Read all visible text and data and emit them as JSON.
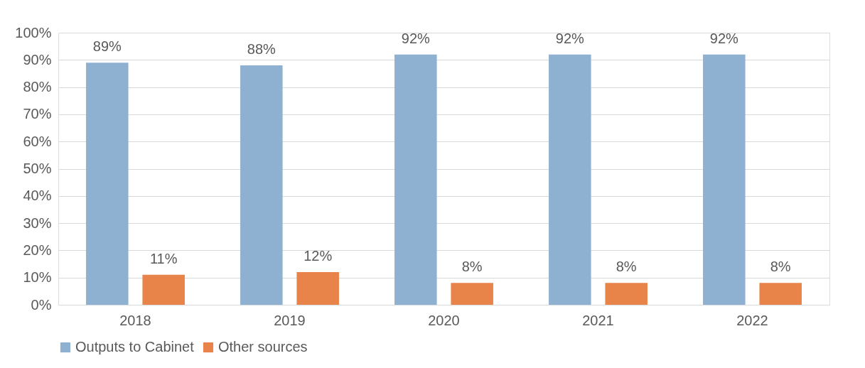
{
  "chart_data": {
    "type": "bar",
    "categories": [
      "2018",
      "2019",
      "2020",
      "2021",
      "2022"
    ],
    "series": [
      {
        "name": "Outputs to Cabinet",
        "color": "#8eb0d1",
        "values": [
          89,
          88,
          92,
          92,
          92
        ],
        "value_labels": [
          "89%",
          "88%",
          "92%",
          "92%",
          "92%"
        ]
      },
      {
        "name": "Other sources",
        "color": "#e8834a",
        "values": [
          11,
          12,
          8,
          8,
          8
        ],
        "value_labels": [
          "11%",
          "12%",
          "8%",
          "8%",
          "8%"
        ]
      }
    ],
    "ylim": [
      0,
      100
    ],
    "yticks": [
      {
        "value": 0,
        "label": "0%"
      },
      {
        "value": 10,
        "label": "10%"
      },
      {
        "value": 20,
        "label": "20%"
      },
      {
        "value": 30,
        "label": "30%"
      },
      {
        "value": 40,
        "label": "40%"
      },
      {
        "value": 50,
        "label": "50%"
      },
      {
        "value": 60,
        "label": "60%"
      },
      {
        "value": 70,
        "label": "70%"
      },
      {
        "value": 80,
        "label": "80%"
      },
      {
        "value": 90,
        "label": "90%"
      },
      {
        "value": 100,
        "label": "100%"
      }
    ],
    "grid": "y",
    "legend": "bottom"
  }
}
